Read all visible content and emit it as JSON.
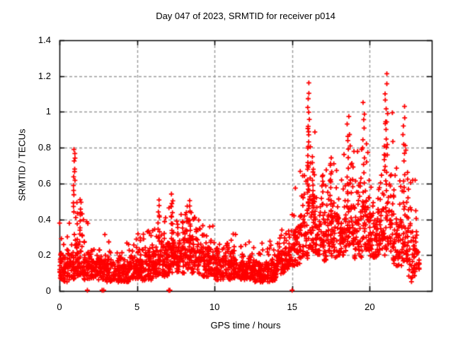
{
  "chart_data": {
    "type": "scatter",
    "title": "Day 047 of 2023, SRMTID for receiver p014",
    "xlabel": "GPS time / hours",
    "ylabel": "SRMTID / TECUs",
    "xlim": [
      0,
      24
    ],
    "ylim": [
      0,
      1.4
    ],
    "xticks": [
      [
        0,
        "0"
      ],
      [
        5,
        "5"
      ],
      [
        10,
        "10"
      ],
      [
        15,
        "15"
      ],
      [
        20,
        "20"
      ]
    ],
    "yticks": [
      [
        0,
        "0"
      ],
      [
        0.2,
        "0.2"
      ],
      [
        0.4,
        "0.4"
      ],
      [
        0.6,
        "0.6"
      ],
      [
        0.8,
        "0.8"
      ],
      [
        1,
        "1"
      ],
      [
        1.2,
        "1.2"
      ],
      [
        1.4,
        "1.4"
      ]
    ],
    "grid": true,
    "legend": false,
    "marker": "plus",
    "marker_color": "#ff0000",
    "grid_color": "#999999",
    "axis_color": "#000000",
    "seed": 47,
    "envelope_bins_format": [
      "t_start_hours",
      "width_hours",
      "value_min",
      "value_typical",
      "value_max",
      "n_points"
    ],
    "envelope_bins": [
      [
        0.0,
        0.5,
        0.05,
        0.18,
        0.38,
        55
      ],
      [
        0.5,
        0.5,
        0.06,
        0.2,
        0.4,
        50
      ],
      [
        1.0,
        0.5,
        0.08,
        0.26,
        0.5,
        50
      ],
      [
        1.5,
        0.5,
        0.06,
        0.19,
        0.4,
        46
      ],
      [
        2.0,
        0.5,
        0.07,
        0.17,
        0.32,
        50
      ],
      [
        2.5,
        0.5,
        0.06,
        0.17,
        0.33,
        50
      ],
      [
        3.0,
        0.5,
        0.05,
        0.15,
        0.28,
        50
      ],
      [
        3.5,
        0.5,
        0.05,
        0.14,
        0.26,
        48
      ],
      [
        4.0,
        0.5,
        0.05,
        0.14,
        0.27,
        48
      ],
      [
        4.5,
        0.5,
        0.06,
        0.15,
        0.3,
        50
      ],
      [
        5.0,
        0.5,
        0.05,
        0.17,
        0.32,
        50
      ],
      [
        5.5,
        0.5,
        0.06,
        0.18,
        0.35,
        50
      ],
      [
        6.0,
        0.5,
        0.08,
        0.22,
        0.45,
        52
      ],
      [
        6.5,
        0.5,
        0.08,
        0.24,
        0.42,
        52
      ],
      [
        7.0,
        0.5,
        0.1,
        0.28,
        0.5,
        55
      ],
      [
        7.5,
        0.5,
        0.1,
        0.26,
        0.44,
        52
      ],
      [
        8.0,
        0.5,
        0.1,
        0.28,
        0.48,
        55
      ],
      [
        8.5,
        0.5,
        0.1,
        0.26,
        0.42,
        52
      ],
      [
        9.0,
        0.5,
        0.08,
        0.22,
        0.38,
        50
      ],
      [
        9.5,
        0.5,
        0.08,
        0.22,
        0.38,
        50
      ],
      [
        10.0,
        0.5,
        0.06,
        0.18,
        0.32,
        50
      ],
      [
        10.5,
        0.5,
        0.06,
        0.17,
        0.3,
        50
      ],
      [
        11.0,
        0.5,
        0.07,
        0.18,
        0.32,
        50
      ],
      [
        11.5,
        0.5,
        0.06,
        0.16,
        0.3,
        50
      ],
      [
        12.0,
        0.5,
        0.06,
        0.16,
        0.28,
        50
      ],
      [
        12.5,
        0.5,
        0.05,
        0.15,
        0.3,
        50
      ],
      [
        13.0,
        0.5,
        0.05,
        0.15,
        0.3,
        50
      ],
      [
        13.5,
        0.5,
        0.05,
        0.15,
        0.28,
        50
      ],
      [
        14.0,
        0.5,
        0.09,
        0.2,
        0.35,
        50
      ],
      [
        14.5,
        0.5,
        0.12,
        0.24,
        0.38,
        50
      ],
      [
        15.0,
        0.5,
        0.14,
        0.32,
        0.6,
        50
      ],
      [
        15.5,
        0.5,
        0.18,
        0.42,
        0.78,
        50
      ],
      [
        16.0,
        0.5,
        0.22,
        0.5,
        0.95,
        55
      ],
      [
        16.5,
        0.5,
        0.2,
        0.42,
        0.75,
        52
      ],
      [
        17.0,
        0.5,
        0.16,
        0.38,
        0.7,
        50
      ],
      [
        17.5,
        0.5,
        0.18,
        0.42,
        0.72,
        50
      ],
      [
        18.0,
        0.5,
        0.2,
        0.42,
        0.78,
        50
      ],
      [
        18.5,
        0.5,
        0.22,
        0.46,
        0.9,
        50
      ],
      [
        19.0,
        0.5,
        0.18,
        0.42,
        0.8,
        50
      ],
      [
        19.5,
        0.5,
        0.22,
        0.48,
        0.95,
        50
      ],
      [
        20.0,
        0.5,
        0.18,
        0.42,
        0.78,
        50
      ],
      [
        20.5,
        0.5,
        0.2,
        0.44,
        0.82,
        50
      ],
      [
        21.0,
        0.5,
        0.22,
        0.5,
        1.0,
        50
      ],
      [
        21.5,
        0.5,
        0.14,
        0.38,
        0.75,
        50
      ],
      [
        22.0,
        0.5,
        0.14,
        0.4,
        0.85,
        50
      ],
      [
        22.5,
        0.5,
        0.05,
        0.28,
        0.65,
        45
      ],
      [
        23.0,
        0.2,
        0.08,
        0.22,
        0.45,
        16
      ]
    ],
    "spike_columns_format": [
      "x_hours",
      "value_min",
      "value_max",
      "n_points"
    ],
    "spike_columns": [
      [
        0.95,
        0.45,
        0.8,
        14
      ],
      [
        1.35,
        0.28,
        0.52,
        10
      ],
      [
        6.4,
        0.28,
        0.5,
        10
      ],
      [
        7.25,
        0.3,
        0.53,
        12
      ],
      [
        8.45,
        0.28,
        0.5,
        10
      ],
      [
        16.05,
        0.55,
        1.15,
        16
      ],
      [
        16.35,
        0.4,
        0.75,
        12
      ],
      [
        17.5,
        0.42,
        0.75,
        12
      ],
      [
        18.6,
        0.45,
        0.97,
        12
      ],
      [
        19.6,
        0.5,
        1.05,
        12
      ],
      [
        21.05,
        0.55,
        1.21,
        14
      ],
      [
        22.2,
        0.45,
        1.03,
        12
      ]
    ],
    "zero_value_points_hours": [
      1.8,
      2.75,
      2.85,
      7.05,
      7.12,
      15.0
    ]
  }
}
